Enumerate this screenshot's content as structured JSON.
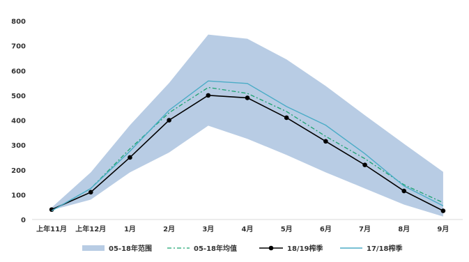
{
  "chart_data": {
    "type": "area",
    "categories": [
      "上年11月",
      "上年12月",
      "1月",
      "2月",
      "3月",
      "4月",
      "5月",
      "6月",
      "7月",
      "8月",
      "9月"
    ],
    "ylim": [
      0,
      800
    ],
    "yticks": [
      0,
      100,
      200,
      300,
      400,
      500,
      600,
      700,
      800
    ],
    "grid": false,
    "legend_position": "bottom",
    "range_band": {
      "name": "05-18年范围",
      "color": "#b8cce4",
      "min": [
        38,
        80,
        190,
        270,
        378,
        325,
        260,
        190,
        125,
        60,
        12
      ],
      "max": [
        48,
        190,
        380,
        550,
        745,
        728,
        645,
        538,
        420,
        305,
        192
      ]
    },
    "series": [
      {
        "name": "05-18年均值",
        "style": "dashdot",
        "color": "#1aa36f",
        "values": [
          35,
          125,
          285,
          430,
          532,
          508,
          435,
          335,
          245,
          140,
          68
        ]
      },
      {
        "name": "18/19榨季",
        "style": "marker",
        "color": "#000000",
        "values": [
          40,
          110,
          250,
          400,
          500,
          490,
          410,
          315,
          220,
          115,
          35
        ]
      },
      {
        "name": "17/18榨季",
        "style": "solid",
        "color": "#4bacc6",
        "values": [
          35,
          125,
          275,
          440,
          558,
          548,
          455,
          380,
          265,
          135,
          55
        ]
      }
    ]
  }
}
